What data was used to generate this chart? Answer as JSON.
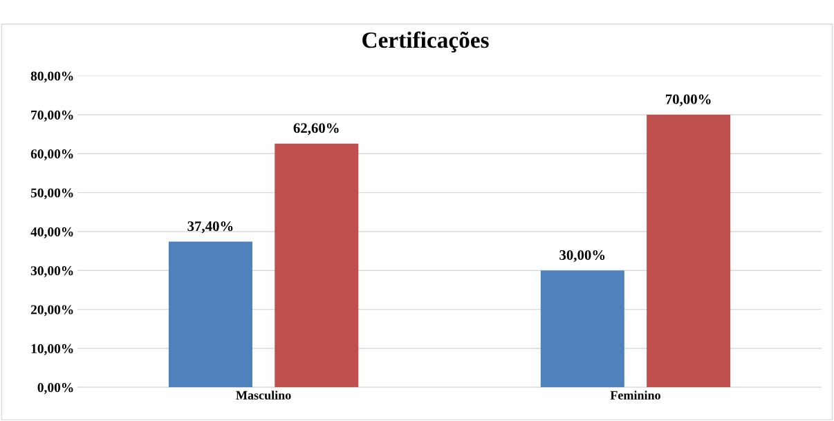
{
  "chart_data": {
    "type": "bar",
    "title": "Certificações",
    "categories": [
      "Masculino",
      "Feminino"
    ],
    "series": [
      {
        "color": "#4f81bd",
        "values": [
          37.4,
          30.0
        ],
        "value_labels": [
          "37,40%",
          "30,00%"
        ]
      },
      {
        "color": "#c0504d",
        "values": [
          62.6,
          70.0
        ],
        "value_labels": [
          "62,60%",
          "70,00%"
        ]
      }
    ],
    "ylim": [
      0,
      80
    ],
    "yticks": [
      {
        "value": 0,
        "label": "0,00%"
      },
      {
        "value": 10,
        "label": "10,00%"
      },
      {
        "value": 20,
        "label": "20,00%"
      },
      {
        "value": 30,
        "label": "30,00%"
      },
      {
        "value": 40,
        "label": "40,00%"
      },
      {
        "value": 50,
        "label": "50,00%"
      },
      {
        "value": 60,
        "label": "60,00%"
      },
      {
        "value": 70,
        "label": "70,00%"
      },
      {
        "value": 80,
        "label": "80,00%"
      }
    ],
    "grid": "y"
  }
}
